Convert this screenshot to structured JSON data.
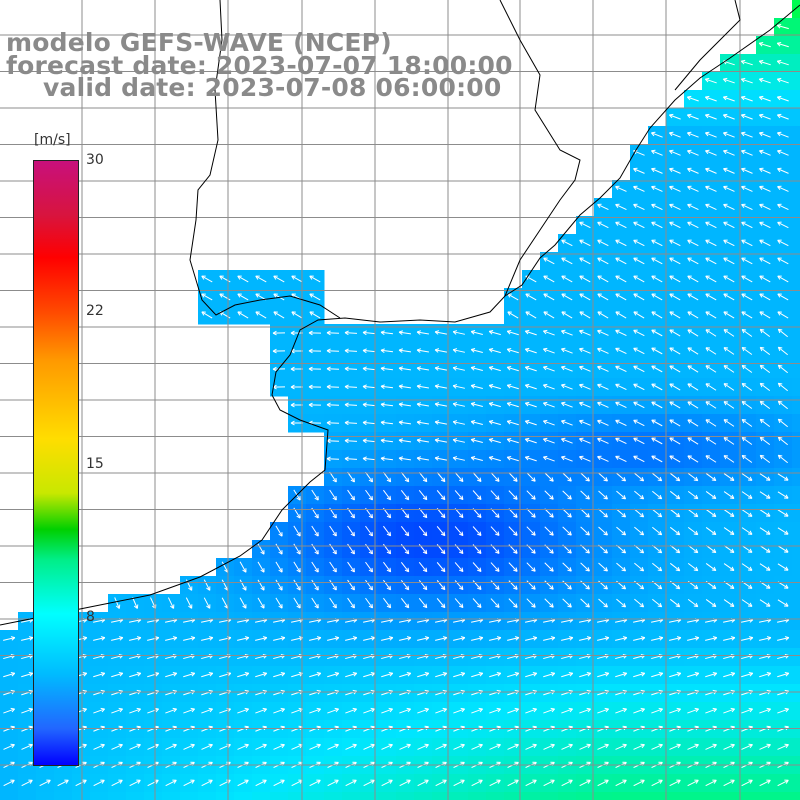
{
  "header": {
    "title": "modelo GEFS-WAVE (NCEP)",
    "forecast": "forecast date: 2023-07-07 18:00:00",
    "valid": "valid date: 2023-07-08 06:00:00"
  },
  "colorbar": {
    "units": "[m/s]",
    "ticks": [
      "30",
      "22",
      "15",
      "8"
    ],
    "colors": [
      "#c8107c",
      "#ff0000",
      "#ff9900",
      "#ffdd00",
      "#00d000",
      "#00ffff",
      "#2266ff",
      "#0000ff"
    ]
  },
  "map": {
    "field": "wind speed with direction arrows",
    "land_color": "#ffffff",
    "coastline_color": "#000000",
    "grid_color": "#8c8c8c",
    "arrow_color": "#ffffff"
  }
}
